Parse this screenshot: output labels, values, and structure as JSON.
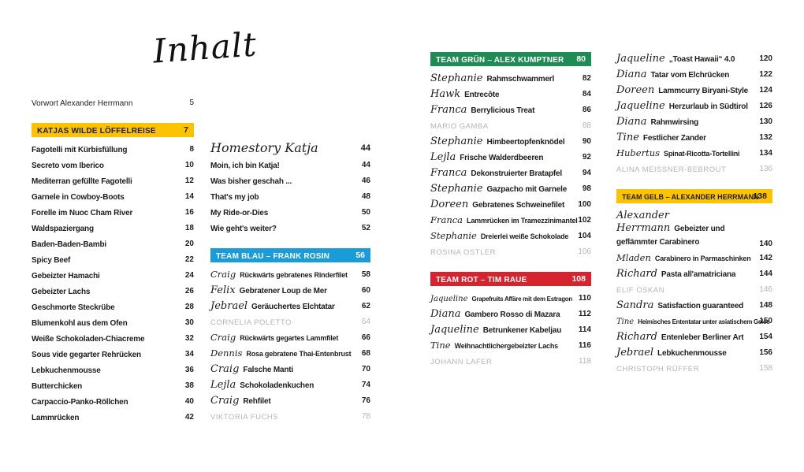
{
  "title": "Inhalt",
  "colors": {
    "yellow": "#fdc300",
    "blue": "#1a9cd8",
    "green": "#1f8b55",
    "red": "#d6232e",
    "text": "#1d1d1b",
    "gray": "#b5b5b5"
  },
  "columns": [
    {
      "name": "column-1",
      "items": [
        {
          "type": "plain",
          "label": "Vorwort Alexander Herrmann",
          "page": "5"
        },
        {
          "type": "header",
          "color": "yellow",
          "label": "KATJAS WILDE LÖFFELREISE",
          "page": "7",
          "gap": true
        },
        {
          "type": "toc",
          "label": "Fagotelli mit Kürbisfüllung",
          "page": "8"
        },
        {
          "type": "toc",
          "label": "Secreto vom Iberico",
          "page": "10"
        },
        {
          "type": "toc",
          "label": "Mediterran gefüllte Fagotelli",
          "page": "12"
        },
        {
          "type": "toc",
          "label": "Garnele in Cowboy-Boots",
          "page": "14"
        },
        {
          "type": "toc",
          "label": "Forelle im Nuoc Cham River",
          "page": "16"
        },
        {
          "type": "toc",
          "label": "Waldspaziergang",
          "page": "18"
        },
        {
          "type": "toc",
          "label": "Baden-Baden-Bambi",
          "page": "20"
        },
        {
          "type": "toc",
          "label": "Spicy Beef",
          "page": "22"
        },
        {
          "type": "toc",
          "label": "Gebeizter Hamachi",
          "page": "24"
        },
        {
          "type": "toc",
          "label": "Gebeizter Lachs",
          "page": "26"
        },
        {
          "type": "toc",
          "label": "Geschmorte Steckrübe",
          "page": "28"
        },
        {
          "type": "toc",
          "label": "Blumenkohl aus dem Ofen",
          "page": "30"
        },
        {
          "type": "toc",
          "label": "Weiße Schokoladen-Chiacreme",
          "page": "32"
        },
        {
          "type": "toc",
          "label": "Sous vide gegarter Rehrücken",
          "page": "34"
        },
        {
          "type": "toc",
          "label": "Lebkuchenmousse",
          "page": "36"
        },
        {
          "type": "toc",
          "label": "Butterchicken",
          "page": "38"
        },
        {
          "type": "toc",
          "label": "Carpaccio-Panko-Röllchen",
          "page": "40"
        },
        {
          "type": "toc",
          "label": "Lammrücken",
          "page": "42"
        }
      ]
    },
    {
      "name": "column-2",
      "items": [
        {
          "type": "script",
          "label": "Homestory Katja",
          "page": "44"
        },
        {
          "type": "toc",
          "label": "Moin, ich bin Katja!",
          "page": "44"
        },
        {
          "type": "toc",
          "label": "Was bisher geschah ...",
          "page": "46"
        },
        {
          "type": "toc",
          "label": "That's my job",
          "page": "48"
        },
        {
          "type": "toc",
          "label": "My Ride-or-Dies",
          "page": "50"
        },
        {
          "type": "toc",
          "label": "Wie geht's weiter?",
          "page": "52"
        },
        {
          "type": "header",
          "color": "blue",
          "label": "TEAM BLAU – FRANK ROSIN",
          "page": "56",
          "gap": true
        },
        {
          "type": "toc",
          "chef": "Craig",
          "label": "Rückwärts gebratenes Rinderfilet",
          "page": "58"
        },
        {
          "type": "toc",
          "chef": "Felix",
          "label": "Gebratener Loup de Mer",
          "page": "60"
        },
        {
          "type": "toc",
          "chef": "Jebrael",
          "label": "Geräuchertes Elchtatar",
          "page": "62"
        },
        {
          "type": "guest",
          "label": "CORNELIA POLETTO",
          "page": "64"
        },
        {
          "type": "toc",
          "chef": "Craig",
          "label": "Rückwärts gegartes Lammfilet",
          "page": "66"
        },
        {
          "type": "toc",
          "chef": "Dennis",
          "label": "Rosa gebratene Thai-Entenbrust",
          "page": "68"
        },
        {
          "type": "toc",
          "chef": "Craig",
          "label": "Falsche Manti",
          "page": "70"
        },
        {
          "type": "toc",
          "chef": "Lejla",
          "label": "Schokoladenkuchen",
          "page": "74"
        },
        {
          "type": "toc",
          "chef": "Craig",
          "label": "Rehfilet",
          "page": "76"
        },
        {
          "type": "guest",
          "label": "VIKTORIA FUCHS",
          "page": "78"
        }
      ]
    },
    {
      "name": "column-3",
      "items": [
        {
          "type": "header",
          "color": "green",
          "label": "TEAM GRÜN – ALEX KUMPTNER",
          "page": "80"
        },
        {
          "type": "toc",
          "chef": "Stephanie",
          "label": "Rahmschwammerl",
          "page": "82"
        },
        {
          "type": "toc",
          "chef": "Hawk",
          "label": "Entrecôte",
          "page": "84"
        },
        {
          "type": "toc",
          "chef": "Franca",
          "label": "Berrylicious Treat",
          "page": "86"
        },
        {
          "type": "guest",
          "label": "MARIO GAMBA",
          "page": "88"
        },
        {
          "type": "toc",
          "chef": "Stephanie",
          "label": "Himbeertopfenknödel",
          "page": "90"
        },
        {
          "type": "toc",
          "chef": "Lejla",
          "label": "Frische Walderdbeeren",
          "page": "92"
        },
        {
          "type": "toc",
          "chef": "Franca",
          "label": "Dekonstruierter Bratapfel",
          "page": "94"
        },
        {
          "type": "toc",
          "chef": "Stephanie",
          "label": "Gazpacho mit Garnele",
          "page": "98"
        },
        {
          "type": "toc",
          "chef": "Doreen",
          "label": "Gebratenes Schweinefilet",
          "page": "100"
        },
        {
          "type": "toc",
          "chef": "Franca",
          "label": "Lammrücken im Tramezzinimantel",
          "page": "102"
        },
        {
          "type": "toc",
          "chef": "Stephanie",
          "label": "Dreierlei weiße Schokolade",
          "page": "104"
        },
        {
          "type": "guest",
          "label": "ROSINA OSTLER",
          "page": "106"
        },
        {
          "type": "header",
          "color": "red",
          "label": "TEAM ROT – TIM RAUE",
          "page": "108",
          "gap": true
        },
        {
          "type": "toc",
          "chef": "Jaqueline",
          "label": "Grapefruits Affäre mit dem Estragon",
          "page": "110"
        },
        {
          "type": "toc",
          "chef": "Diana",
          "label": "Gambero Rosso di Mazara",
          "page": "112"
        },
        {
          "type": "toc",
          "chef": "Jaqueline",
          "label": "Betrunkener Kabeljau",
          "page": "114"
        },
        {
          "type": "toc",
          "chef": "Tine",
          "label": "Weihnachtlichergebeizter Lachs",
          "page": "116"
        },
        {
          "type": "guest",
          "label": "JOHANN LAFER",
          "page": "118"
        }
      ]
    },
    {
      "name": "column-4",
      "items": [
        {
          "type": "toc",
          "chef": "Jaqueline",
          "label": "„Toast Hawaii“ 4.0",
          "page": "120"
        },
        {
          "type": "toc",
          "chef": "Diana",
          "label": "Tatar vom Elchrücken",
          "page": "122"
        },
        {
          "type": "toc",
          "chef": "Doreen",
          "label": "Lammcurry Biryani-Style",
          "page": "124"
        },
        {
          "type": "toc",
          "chef": "Jaqueline",
          "label": "Herzurlaub in Südtirol",
          "page": "126"
        },
        {
          "type": "toc",
          "chef": "Diana",
          "label": "Rahmwirsing",
          "page": "130"
        },
        {
          "type": "toc",
          "chef": "Tine",
          "label": "Festlicher Zander",
          "page": "132"
        },
        {
          "type": "toc",
          "chef": "Hubertus",
          "label": "Spinat-Ricotta-Tortellini",
          "page": "134"
        },
        {
          "type": "guest",
          "label": "ALINA MEISSNER-BEBROUT",
          "page": "136"
        },
        {
          "type": "header",
          "color": "yellow",
          "label": "TEAM GELB – ALEXANDER HERRMANN",
          "page": "138",
          "gap": true
        },
        {
          "type": "toc",
          "chef": "Alexander Herrmann",
          "label": "Gebeizter und geflämmter Carabinero",
          "page": "140",
          "wrap": true
        },
        {
          "type": "toc",
          "chef": "Mladen",
          "label": "Carabinero in Parmaschinken",
          "page": "142"
        },
        {
          "type": "toc",
          "chef": "Richard",
          "label": "Pasta all'amatriciana",
          "page": "144"
        },
        {
          "type": "guest",
          "label": "ELIF OSKAN",
          "page": "146"
        },
        {
          "type": "toc",
          "chef": "Sandra",
          "label": "Satisfaction guaranteed",
          "page": "148"
        },
        {
          "type": "toc",
          "chef": "Tine",
          "label": "Heimisches Ententatar unter asiatischem Gelee",
          "page": "150"
        },
        {
          "type": "toc",
          "chef": "Richard",
          "label": "Entenleber Berliner Art",
          "page": "154"
        },
        {
          "type": "toc",
          "chef": "Jebrael",
          "label": "Lebkuchenmousse",
          "page": "156"
        },
        {
          "type": "guest",
          "label": "CHRISTOPH RÜFFER",
          "page": "158"
        }
      ]
    }
  ]
}
